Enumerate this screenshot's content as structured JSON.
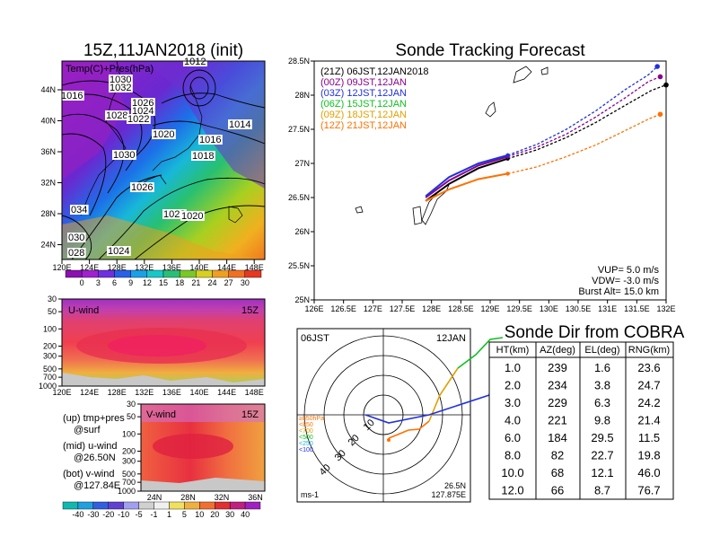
{
  "colors": {
    "c00": "#000000",
    "c03": "#8b008b",
    "c06": "#2030e0",
    "c09": "#10c020",
    "c12": "#e0a000",
    "c15": "#ff7000"
  },
  "map_panel": {
    "title": "15Z,11JAN2018 (init)",
    "label": "Temp(C)+Pres(hPa)",
    "lat_ticks": [
      "44N",
      "40N",
      "36N",
      "32N",
      "28N",
      "24N"
    ],
    "lon_ticks": [
      "120E",
      "124E",
      "128E",
      "132E",
      "136E",
      "140E",
      "144E",
      "148E"
    ],
    "isobars": [
      "1012",
      "1030",
      "1032",
      "1026",
      "1024",
      "1028",
      "1022",
      "1014",
      "1020",
      "1016",
      "1018",
      "1030",
      "1026",
      "1022",
      "1020",
      "034",
      "030",
      "028",
      "1024",
      "1016"
    ],
    "colorbar": [
      "0",
      "3",
      "6",
      "9",
      "12",
      "15",
      "18",
      "21",
      "24",
      "27",
      "30"
    ]
  },
  "u_panel": {
    "label": "U-wind",
    "time": "15Z",
    "p_ticks": [
      "30",
      "50",
      "100",
      "200",
      "300",
      "500",
      "700",
      "1000"
    ],
    "lon_ticks": [
      "120E",
      "124E",
      "128E",
      "132E",
      "136E",
      "140E",
      "144E",
      "148E"
    ]
  },
  "v_panel": {
    "label": "V-wind",
    "time": "15Z",
    "p_ticks": [
      "30",
      "50",
      "100",
      "200",
      "300",
      "500",
      "700",
      "1000"
    ],
    "lat_ticks": [
      "24N",
      "28N",
      "32N",
      "36N"
    ]
  },
  "notes": [
    "(up) tmp+pres",
    "@surf",
    "(mid) u-wind",
    "@26.50N",
    "(bot) v-wind",
    "@127.84E"
  ],
  "wind_colorbar": [
    "-40",
    "-30",
    "-20",
    "-10",
    "-5",
    "-1",
    "1",
    "5",
    "10",
    "20",
    "30",
    "40"
  ],
  "track": {
    "title": "Sonde Tracking Forecast",
    "legend": [
      {
        "label": "(21Z)  06JST,12JAN2018",
        "color": "#000000"
      },
      {
        "label": "(00Z)  09JST,12JAN",
        "color": "#8b008b"
      },
      {
        "label": "(03Z)  12JST,12JAN",
        "color": "#2030e0"
      },
      {
        "label": "(06Z)  15JST,12JAN",
        "color": "#10c020"
      },
      {
        "label": "(09Z)  18JST,12JAN",
        "color": "#e0a000"
      },
      {
        "label": "(12Z)  21JST,12JAN",
        "color": "#ff7000"
      }
    ],
    "y_ticks": [
      "28.5N",
      "28N",
      "27.5N",
      "27N",
      "26.5N",
      "26N",
      "25.5N",
      "25N"
    ],
    "x_ticks": [
      "126E",
      "126.5E",
      "127E",
      "127.5E",
      "128E",
      "128.5E",
      "129E",
      "129.5E",
      "130E",
      "130.5E",
      "131E",
      "131.5E",
      "132E"
    ],
    "params": [
      "VUP=  5.0 m/s",
      "VDW= -3.0 m/s",
      "Burst Alt= 15.0 km"
    ]
  },
  "polar": {
    "corner_tl": "06JST",
    "corner_tr": "12JAN",
    "rings": [
      "10",
      "20",
      "30",
      "40"
    ],
    "levels": [
      "≥850hPa",
      "<850",
      "<700",
      "<500",
      "<250",
      "<100"
    ],
    "unit": "ms-1",
    "loc_lat": "26.5N",
    "loc_lon": "127.875E"
  },
  "cobra": {
    "title": "Sonde Dir from COBRA",
    "columns": [
      "HT(km)",
      "AZ(deg)",
      "EL(deg)",
      "RNG(km)"
    ],
    "rows": [
      [
        "1.0",
        "239",
        "1.6",
        "23.6"
      ],
      [
        "2.0",
        "234",
        "3.8",
        "24.7"
      ],
      [
        "3.0",
        "229",
        "6.3",
        "24.2"
      ],
      [
        "4.0",
        "221",
        "9.8",
        "21.4"
      ],
      [
        "6.0",
        "184",
        "29.5",
        "11.5"
      ],
      [
        "8.0",
        "82",
        "22.7",
        "19.8"
      ],
      [
        "10.0",
        "68",
        "12.1",
        "46.0"
      ],
      [
        "12.0",
        "66",
        "8.7",
        "76.7"
      ]
    ]
  },
  "chart_data": [
    {
      "type": "line",
      "title": "Sonde Tracking Forecast",
      "xlabel": "",
      "ylabel": "",
      "xlim": [
        126,
        132
      ],
      "ylim": [
        25,
        28.5
      ],
      "series": [
        {
          "name": "(21Z)  06JST,12JAN2018",
          "x": [
            127.9,
            128.3,
            128.8,
            129.3,
            129.8,
            130.3,
            130.8,
            131.3,
            131.75,
            132.0
          ],
          "y": [
            26.45,
            26.7,
            26.93,
            27.07,
            27.2,
            27.38,
            27.6,
            27.85,
            28.07,
            28.15
          ]
        },
        {
          "name": "(00Z)  09JST,12JAN",
          "x": [
            127.9,
            128.3,
            128.8,
            129.3,
            129.8,
            130.3,
            130.8,
            131.3,
            131.7,
            131.9
          ],
          "y": [
            26.5,
            26.75,
            26.97,
            27.1,
            27.24,
            27.43,
            27.68,
            27.96,
            28.2,
            28.27
          ]
        },
        {
          "name": "(03Z)  12JST,12JAN",
          "x": [
            127.9,
            128.3,
            128.8,
            129.3,
            129.8,
            130.3,
            130.8,
            131.3,
            131.7,
            131.85
          ],
          "y": [
            26.52,
            26.8,
            27.0,
            27.12,
            27.28,
            27.5,
            27.77,
            28.08,
            28.3,
            28.42
          ]
        },
        {
          "name": "(12Z)  21JST,12JAN",
          "x": [
            127.9,
            128.3,
            128.8,
            129.3,
            129.8,
            130.3,
            130.8,
            131.3,
            131.7,
            131.9
          ],
          "y": [
            26.45,
            26.62,
            26.77,
            26.85,
            26.95,
            27.1,
            27.27,
            27.48,
            27.65,
            27.72
          ]
        }
      ]
    },
    {
      "type": "table",
      "title": "Sonde Dir from COBRA",
      "columns": [
        "HT(km)",
        "AZ(deg)",
        "EL(deg)",
        "RNG(km)"
      ],
      "rows": [
        [
          "1.0",
          "239",
          "1.6",
          "23.6"
        ],
        [
          "2.0",
          "234",
          "3.8",
          "24.7"
        ],
        [
          "3.0",
          "229",
          "6.3",
          "24.2"
        ],
        [
          "4.0",
          "221",
          "9.8",
          "21.4"
        ],
        [
          "6.0",
          "184",
          "29.5",
          "11.5"
        ],
        [
          "8.0",
          "82",
          "22.7",
          "19.8"
        ],
        [
          "10.0",
          "68",
          "12.1",
          "46.0"
        ],
        [
          "12.0",
          "66",
          "8.7",
          "76.7"
        ]
      ]
    }
  ]
}
